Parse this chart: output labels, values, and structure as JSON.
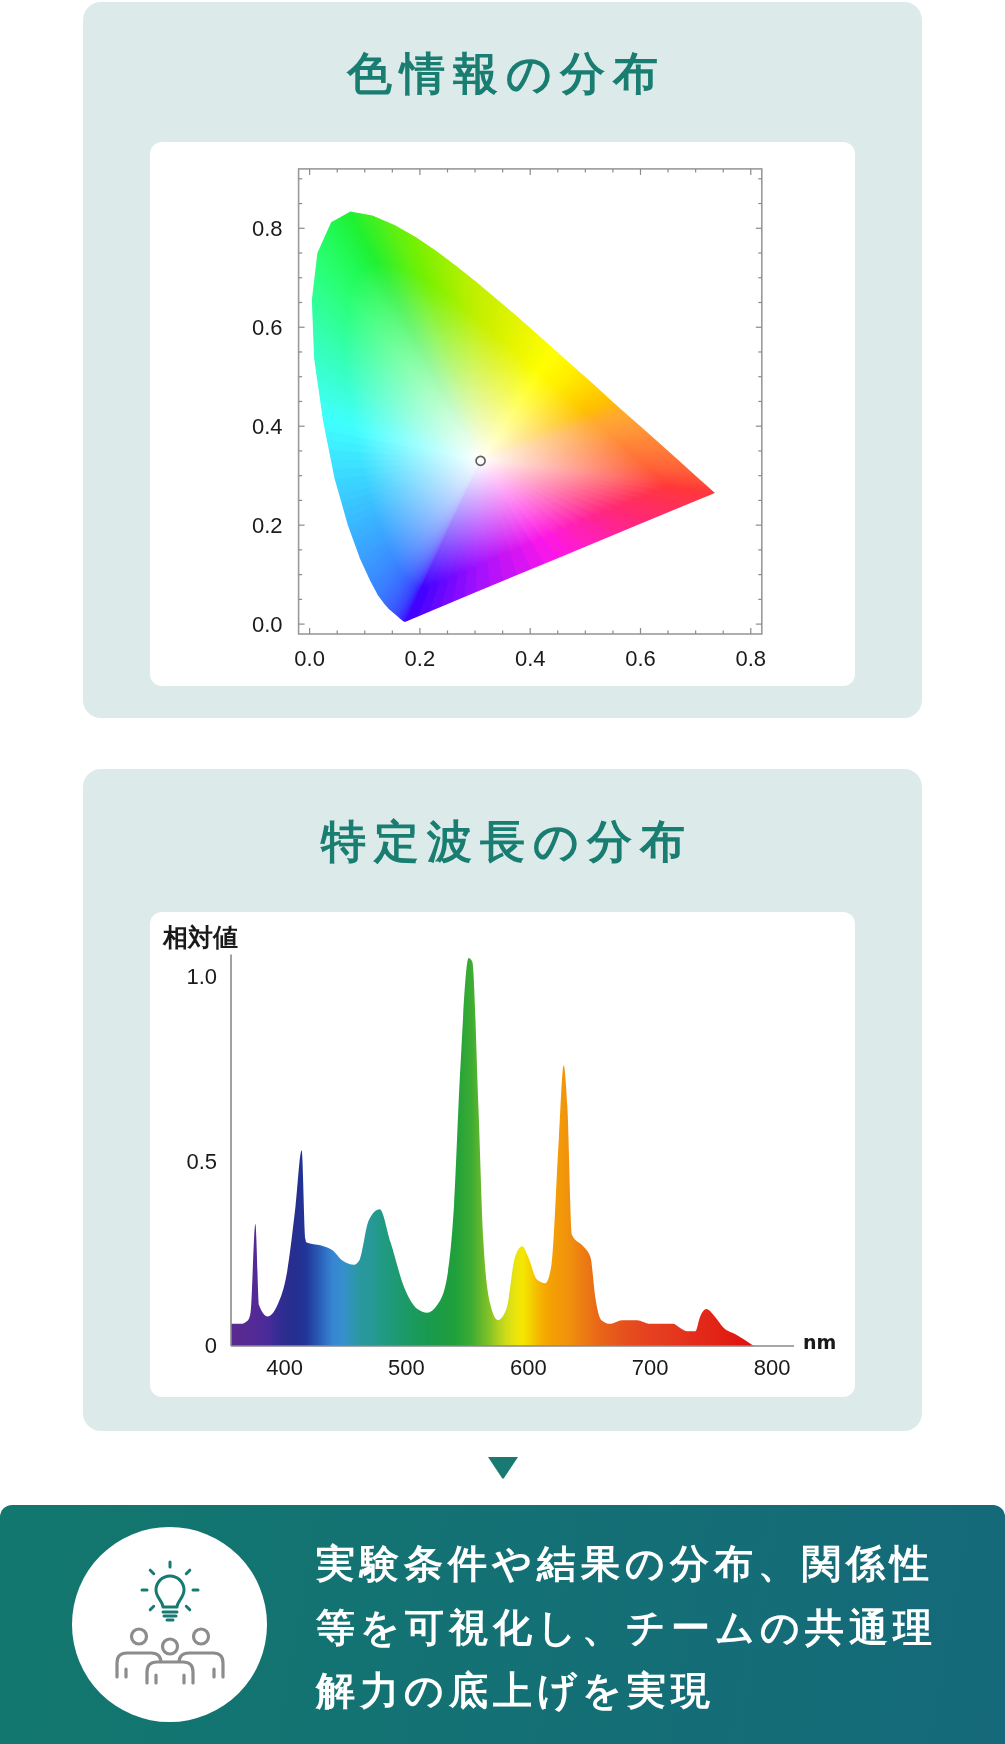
{
  "chart_data": [
    {
      "type": "scatter",
      "title": "色情報の分布",
      "series": [
        {
          "type": "area",
          "x": [
            0.174,
            0.171,
            0.164,
            0.157,
            0.144,
            0.136,
            0.124,
            0.11,
            0.091,
            0.069,
            0.045,
            0.024,
            0.008,
            0.004,
            0.014,
            0.039,
            0.074,
            0.114,
            0.155,
            0.193,
            0.23,
            0.266,
            0.302,
            0.337,
            0.373,
            0.409,
            0.444,
            0.479,
            0.513,
            0.545,
            0.575,
            0.603,
            0.627,
            0.666,
            0.692,
            0.708,
            0.719,
            0.726,
            0.735,
            0.6,
            0.45,
            0.3
          ],
          "values": [
            0.005,
            0.005,
            0.011,
            0.018,
            0.03,
            0.04,
            0.058,
            0.087,
            0.133,
            0.201,
            0.295,
            0.413,
            0.538,
            0.655,
            0.75,
            0.812,
            0.834,
            0.826,
            0.806,
            0.782,
            0.754,
            0.724,
            0.692,
            0.659,
            0.625,
            0.59,
            0.555,
            0.52,
            0.487,
            0.454,
            0.424,
            0.397,
            0.373,
            0.334,
            0.308,
            0.292,
            0.281,
            0.274,
            0.265,
            0.203,
            0.133,
            0.064
          ],
          "colors": [
            "#3c00ff",
            "#3a10ff",
            "#3a30ff",
            "#3a48ff",
            "#3a60ff",
            "#3a6cff",
            "#3a7cff",
            "#3a8cff",
            "#3aa0ff",
            "#3ab8ff",
            "#3ad8ff",
            "#40ffff",
            "#38ffc8",
            "#30ff98",
            "#28ff70",
            "#20f850",
            "#20f030",
            "#40f020",
            "#60f010",
            "#78f000",
            "#90f000",
            "#a8f000",
            "#c0f000",
            "#d0f000",
            "#e0f400",
            "#f0f800",
            "#ffff00",
            "#fff000",
            "#ffd800",
            "#ffc000",
            "#ffa830",
            "#ff9838",
            "#ff8838",
            "#ff7038",
            "#ff6038",
            "#ff5038",
            "#ff4838",
            "#ff4038",
            "#ff3838",
            "#ff2878",
            "#ff18e8",
            "#a010ff"
          ]
        },
        {
          "type": "scatter",
          "x": [
            0.31
          ],
          "values": [
            0.33
          ],
          "color": "#606060",
          "marker": "circle"
        }
      ],
      "xlim": [
        -0.02,
        0.82
      ],
      "xticks": [
        {
          "value": 0,
          "label": "0.0"
        },
        {
          "value": 0.05,
          "label": null
        },
        {
          "value": 0.1,
          "label": null
        },
        {
          "value": 0.15,
          "label": null
        },
        0.2,
        {
          "value": 0.25,
          "label": null
        },
        {
          "value": 0.3,
          "label": null
        },
        {
          "value": 0.35,
          "label": null
        },
        0.4,
        {
          "value": 0.45,
          "label": null
        },
        {
          "value": 0.5,
          "label": null
        },
        {
          "value": 0.55,
          "label": null
        },
        0.6,
        {
          "value": 0.65,
          "label": null
        },
        {
          "value": 0.7,
          "label": null
        },
        {
          "value": 0.75,
          "label": null
        },
        0.8
      ],
      "ylim": [
        -0.02,
        0.92
      ],
      "yticks": [
        {
          "value": 0,
          "label": "0.0"
        },
        {
          "value": 0.05,
          "label": null
        },
        {
          "value": 0.1,
          "label": null
        },
        {
          "value": 0.15,
          "label": null
        },
        0.2,
        {
          "value": 0.25,
          "label": null
        },
        {
          "value": 0.3,
          "label": null
        },
        {
          "value": 0.35,
          "label": null
        },
        0.4,
        {
          "value": 0.45,
          "label": null
        },
        {
          "value": 0.5,
          "label": null
        },
        {
          "value": 0.55,
          "label": null
        },
        0.6,
        {
          "value": 0.65,
          "label": null
        },
        {
          "value": 0.7,
          "label": null
        },
        {
          "value": 0.75,
          "label": null
        },
        0.8,
        {
          "value": 0.85,
          "label": null
        },
        {
          "value": 0.9,
          "label": null
        }
      ]
    },
    {
      "type": "area",
      "title": "特定波長の分布",
      "xlabel": "nm",
      "ylabel": "相対値",
      "x": [
        356,
        364,
        370,
        372,
        376,
        379,
        386,
        394,
        402,
        409,
        414,
        417,
        418,
        432,
        439,
        448,
        457,
        461,
        469,
        478,
        487,
        498,
        509,
        517,
        525,
        533,
        539,
        544,
        551,
        554,
        559,
        563,
        569,
        575,
        582,
        589,
        595,
        600,
        607,
        614,
        619,
        625,
        629,
        632,
        636,
        645,
        651,
        655,
        660,
        667,
        677,
        689,
        700,
        719,
        724,
        730,
        737,
        741,
        746,
        753,
        760,
        771,
        785
      ],
      "values": [
        0.06,
        0.06,
        0.07,
        0.09,
        0.33,
        0.11,
        0.08,
        0.11,
        0.2,
        0.38,
        0.53,
        0.29,
        0.28,
        0.27,
        0.26,
        0.23,
        0.22,
        0.23,
        0.34,
        0.37,
        0.28,
        0.16,
        0.1,
        0.09,
        0.11,
        0.18,
        0.38,
        0.74,
        1.05,
        1.04,
        0.65,
        0.29,
        0.11,
        0.07,
        0.1,
        0.24,
        0.27,
        0.24,
        0.18,
        0.17,
        0.22,
        0.56,
        0.76,
        0.65,
        0.3,
        0.27,
        0.24,
        0.13,
        0.07,
        0.06,
        0.07,
        0.07,
        0.06,
        0.06,
        0.05,
        0.04,
        0.04,
        0.08,
        0.1,
        0.08,
        0.05,
        0.03,
        0
      ],
      "colors": [
        "#5b2b8f",
        "#572a92",
        "#552a94",
        "#542a95",
        "#532a96",
        "#502a98",
        "#4a2b9a",
        "#352c94",
        "#2a2d8e",
        "#252f90",
        "#223294",
        "#213597",
        "#203898",
        "#2d6ac0",
        "#3784d4",
        "#3590cc",
        "#2e96b0",
        "#2a98a0",
        "#28989a",
        "#229a88",
        "#1f9a7a",
        "#1c9a6a",
        "#1a9a5a",
        "#1a9a50",
        "#1b9b48",
        "#1e9d40",
        "#20a03c",
        "#28a438",
        "#38aa34",
        "#40ac32",
        "#5ab42e",
        "#6cba2a",
        "#88c426",
        "#aed020",
        "#d0dc18",
        "#e8e410",
        "#f5e800",
        "#f5d800",
        "#f5bc00",
        "#f5a800",
        "#f4a004",
        "#f39a08",
        "#f2960a",
        "#f1920c",
        "#f08c0e",
        "#ed7c12",
        "#eb7214",
        "#ea6a16",
        "#e86418",
        "#e75c1a",
        "#e6521c",
        "#e5481e",
        "#e54020",
        "#e4381e",
        "#e4341d",
        "#e4301c",
        "#e32c1b",
        "#e32a1a",
        "#e22818",
        "#e22416",
        "#e12014",
        "#e11812",
        "#e01010"
      ],
      "xlim": [
        356,
        818
      ],
      "xticks": [
        400,
        500,
        600,
        700,
        800
      ],
      "ylim": [
        0,
        1.06
      ],
      "yticks": [
        0,
        0.5,
        {
          "value": 1,
          "label": "1.0"
        }
      ]
    },
    {
      "type": "other",
      "title": "実験条件や結果の分布、関係性等を可視化し、チームの共通理解力の底上げを実現"
    }
  ]
}
